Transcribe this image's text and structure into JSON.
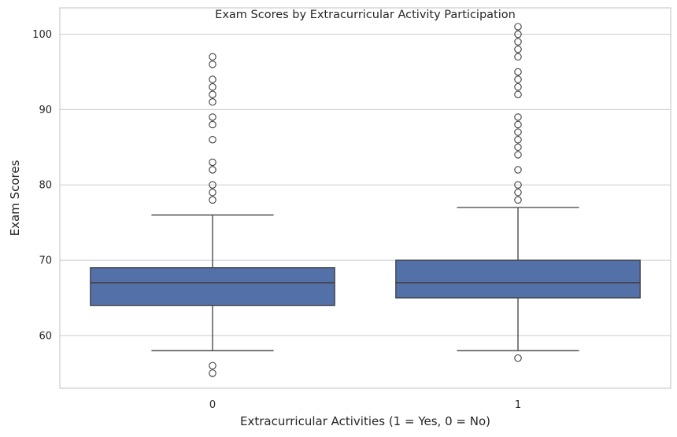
{
  "chart_data": {
    "type": "box",
    "title": "Exam Scores by Extracurricular Activity Participation",
    "xlabel": "Extracurricular Activities (1 = Yes, 0 = No)",
    "ylabel": "Exam Scores",
    "categories": [
      "0",
      "1"
    ],
    "ylim": [
      53,
      103.5
    ],
    "yticks": [
      60,
      70,
      80,
      90,
      100
    ],
    "grid": "y",
    "box_color": "#5470a8",
    "groups": [
      {
        "category": "0",
        "whisker_low": 58,
        "q1": 64,
        "median": 67,
        "q3": 69,
        "whisker_high": 76,
        "outliers": [
          97,
          96,
          94,
          93,
          92,
          91,
          89,
          88,
          86,
          83,
          82,
          80,
          79,
          78,
          56,
          55
        ]
      },
      {
        "category": "1",
        "whisker_low": 58,
        "q1": 65,
        "median": 67,
        "q3": 70,
        "whisker_high": 77,
        "outliers": [
          101,
          100,
          99,
          98,
          97,
          95,
          94,
          93,
          92,
          89,
          88,
          87,
          86,
          85,
          84,
          82,
          80,
          79,
          78,
          57
        ]
      }
    ]
  }
}
